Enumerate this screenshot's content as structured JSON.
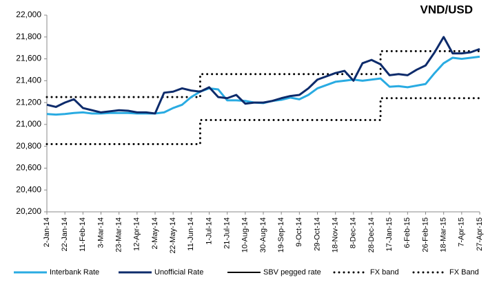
{
  "chart_data": {
    "type": "line",
    "title": "VND/USD",
    "x": [
      "2-Jan-14",
      "12-Jan-14",
      "22-Jan-14",
      "1-Feb-14",
      "11-Feb-14",
      "21-Feb-14",
      "3-Mar-14",
      "13-Mar-14",
      "23-Mar-14",
      "2-Apr-14",
      "12-Apr-14",
      "22-Apr-14",
      "2-May-14",
      "12-May-14",
      "22-May-14",
      "1-Jun-14",
      "11-Jun-14",
      "21-Jun-14",
      "1-Jul-14",
      "11-Jul-14",
      "21-Jul-14",
      "31-Jul-14",
      "10-Aug-14",
      "20-Aug-14",
      "30-Aug-14",
      "9-Sep-14",
      "19-Sep-14",
      "29-Sep-14",
      "9-Oct-14",
      "19-Oct-14",
      "29-Oct-14",
      "8-Nov-14",
      "18-Nov-14",
      "28-Nov-14",
      "8-Dec-14",
      "18-Dec-14",
      "28-Dec-14",
      "7-Jan-15",
      "17-Jan-15",
      "27-Jan-15",
      "6-Feb-15",
      "16-Feb-15",
      "26-Feb-15",
      "8-Mar-15",
      "18-Mar-15",
      "28-Mar-15",
      "7-Apr-15",
      "17-Apr-15",
      "27-Apr-15"
    ],
    "xticks": [
      "2-Jan-14",
      "22-Jan-14",
      "11-Feb-14",
      "3-Mar-14",
      "23-Mar-14",
      "12-Apr-14",
      "2-May-14",
      "22-May-14",
      "11-Jun-14",
      "1-Jul-14",
      "21-Jul-14",
      "10-Aug-14",
      "30-Aug-14",
      "19-Sep-14",
      "9-Oct-14",
      "29-Oct-14",
      "18-Nov-14",
      "8-Dec-14",
      "28-Dec-14",
      "17-Jan-15",
      "6-Feb-15",
      "26-Feb-15",
      "18-Mar-15",
      "7-Apr-15",
      "27-Apr-15"
    ],
    "ylim": [
      20200,
      22000
    ],
    "yticks": [
      {
        "value": 20200,
        "label": "20,200"
      },
      {
        "value": 20400,
        "label": "20,400"
      },
      {
        "value": 20600,
        "label": "20,600"
      },
      {
        "value": 20800,
        "label": "20,800"
      },
      {
        "value": 21000,
        "label": "21,000"
      },
      {
        "value": 21200,
        "label": "21,200"
      },
      {
        "value": 21400,
        "label": "21,400"
      },
      {
        "value": 21600,
        "label": "21,600"
      },
      {
        "value": 21800,
        "label": "21,800"
      },
      {
        "value": 22000,
        "label": "22,000"
      }
    ],
    "series": [
      {
        "name": "Interbank Rate",
        "color": "#29abe2",
        "style": "solid",
        "width": 3,
        "values": [
          21095,
          21090,
          21095,
          21105,
          21110,
          21100,
          21100,
          21105,
          21105,
          21105,
          21100,
          21100,
          21100,
          21110,
          21150,
          21180,
          21250,
          21300,
          21330,
          21320,
          21220,
          21220,
          21215,
          21200,
          21195,
          21215,
          21225,
          21245,
          21230,
          21270,
          21330,
          21360,
          21390,
          21400,
          21410,
          21400,
          21410,
          21420,
          21345,
          21350,
          21340,
          21355,
          21370,
          21470,
          21560,
          21610,
          21600,
          21610,
          21620
        ]
      },
      {
        "name": "Unofficial Rate",
        "color": "#0d2b6b",
        "style": "solid",
        "width": 3,
        "values": [
          21180,
          21160,
          21200,
          21230,
          21150,
          21130,
          21110,
          21120,
          21130,
          21125,
          21110,
          21110,
          21100,
          21290,
          21300,
          21330,
          21310,
          21300,
          21340,
          21250,
          21240,
          21270,
          21190,
          21200,
          21200,
          21215,
          21240,
          21260,
          21270,
          21330,
          21410,
          21440,
          21470,
          21490,
          21400,
          21560,
          21590,
          21550,
          21450,
          21460,
          21450,
          21500,
          21540,
          21660,
          21800,
          21650,
          21650,
          21660,
          21690
        ]
      },
      {
        "name": "SBV pegged rate",
        "color": "#000000",
        "style": "solid",
        "width": 2,
        "values": [
          null,
          null,
          null,
          null,
          null,
          null,
          null,
          null,
          null,
          null,
          null,
          null,
          null,
          null,
          null,
          null,
          null,
          null,
          null,
          null,
          null,
          null,
          null,
          null,
          null,
          null,
          null,
          null,
          null,
          null,
          null,
          null,
          null,
          null,
          null,
          null,
          null,
          null,
          null,
          null,
          null,
          null,
          null,
          null,
          null,
          null,
          null,
          null,
          null
        ]
      },
      {
        "name": "FX band",
        "color": "#000000",
        "style": "dotted",
        "width": 3,
        "step": true,
        "values": [
          21250,
          21250,
          21250,
          21250,
          21250,
          21250,
          21250,
          21250,
          21250,
          21250,
          21250,
          21250,
          21250,
          21250,
          21250,
          21250,
          21250,
          21460,
          21460,
          21460,
          21460,
          21460,
          21460,
          21460,
          21460,
          21460,
          21460,
          21460,
          21460,
          21460,
          21460,
          21460,
          21460,
          21460,
          21460,
          21460,
          21460,
          21670,
          21670,
          21670,
          21670,
          21670,
          21670,
          21670,
          21670,
          21670,
          21670,
          21670,
          21670
        ]
      },
      {
        "name": "FX Band",
        "color": "#000000",
        "style": "dotted",
        "width": 3,
        "step": true,
        "values": [
          20820,
          20820,
          20820,
          20820,
          20820,
          20820,
          20820,
          20820,
          20820,
          20820,
          20820,
          20820,
          20820,
          20820,
          20820,
          20820,
          20820,
          21040,
          21040,
          21040,
          21040,
          21040,
          21040,
          21040,
          21040,
          21040,
          21040,
          21040,
          21040,
          21040,
          21040,
          21040,
          21040,
          21040,
          21040,
          21040,
          21040,
          21240,
          21240,
          21240,
          21240,
          21240,
          21240,
          21240,
          21240,
          21240,
          21240,
          21240,
          21240
        ]
      }
    ]
  }
}
